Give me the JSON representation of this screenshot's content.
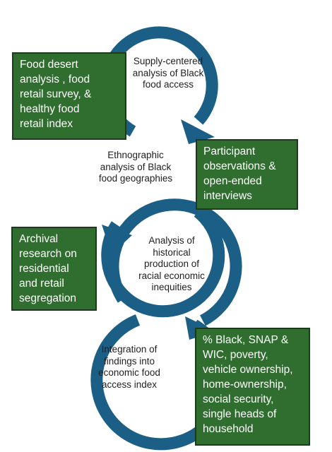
{
  "colors": {
    "arc": "#1b5f86",
    "box_fill": "#2f6e2f",
    "box_border": "#1e3a1e",
    "box_text": "#ffffff"
  },
  "stages": [
    {
      "label": "Supply-centered\nanalysis of Black\nfood access"
    },
    {
      "label": "Ethnographic\nanalysis of Black\nfood geographies"
    },
    {
      "label": "Analysis of\nhistorical\nproduction of\nracial economic\ninequities"
    },
    {
      "label": "Integration  of\nfindings into\neconomic food\naccess index"
    }
  ],
  "methods": [
    {
      "label": "Food desert\nanalysis , food\nretail survey, &\nhealthy food\nretail index"
    },
    {
      "label": "Participant\nobservations &\nopen-ended\ninterviews"
    },
    {
      "label": "Archival\nresearch on\nresidential\nand retail\nsegregation"
    },
    {
      "label": "% Black, SNAP &\nWIC, poverty,\nvehicle ownership,\nhome-ownership,\nsocial security,\nsingle heads of\nhousehold"
    }
  ]
}
